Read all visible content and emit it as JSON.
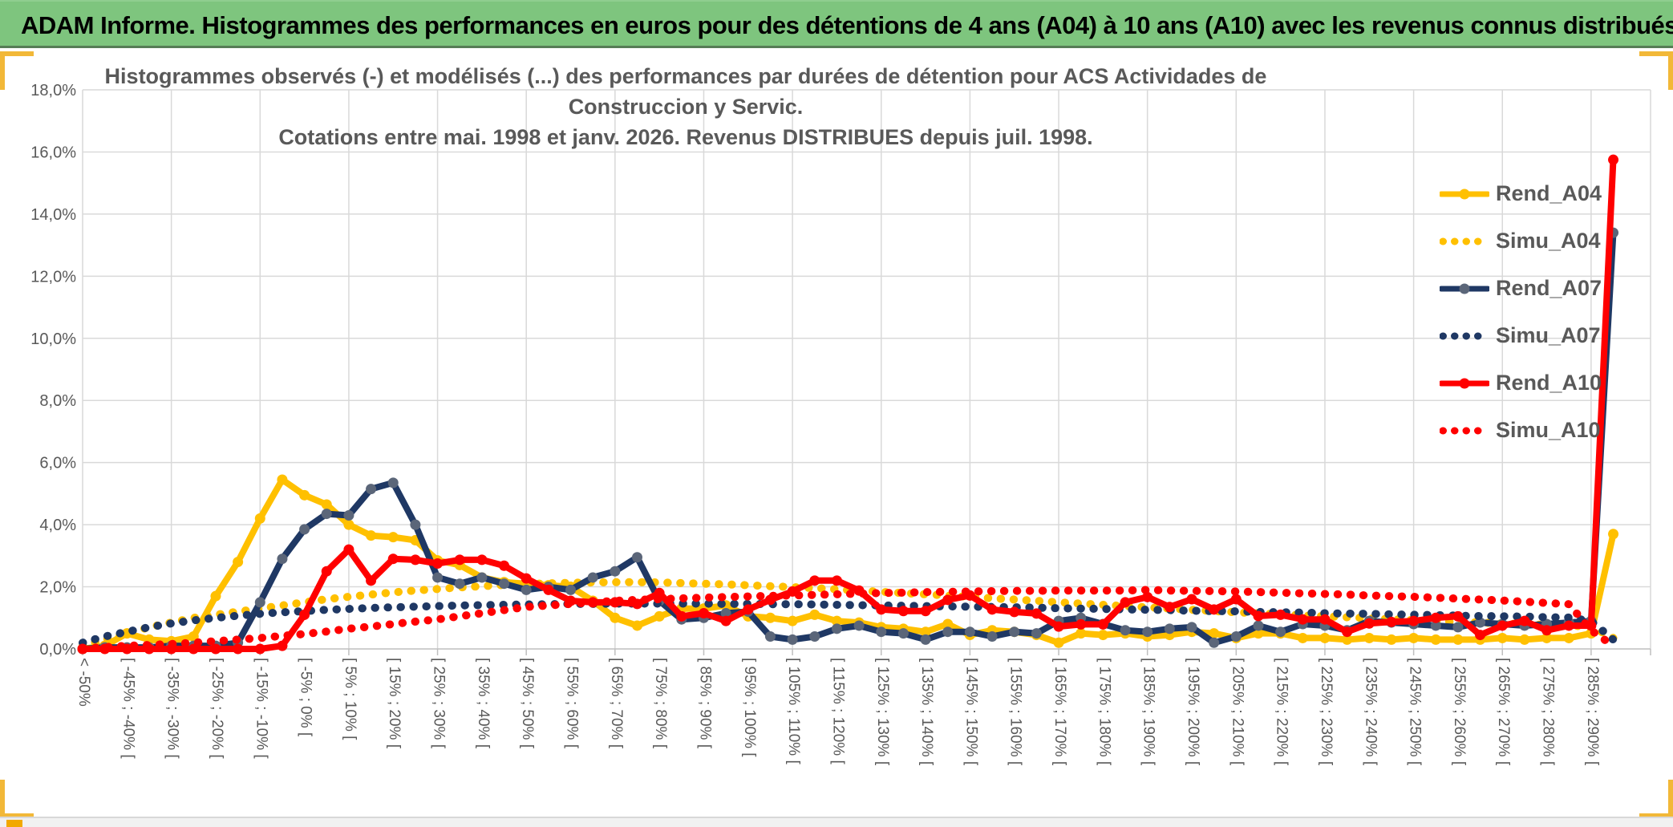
{
  "header": {
    "title": "ADAM Informe. Histogrammes des performances en euros pour des détentions de 4 ans (A04) à 10 ans (A10) avec les revenus connus distribués"
  },
  "chart_data": {
    "type": "line",
    "title_line1": "Histogrammes observés (-) et modélisés (...) des performances par durées de détention pour ACS Actividades de Construccion y Servic.",
    "title_line2": "Cotations entre mai. 1998 et janv. 2026. Revenus DISTRIBUES depuis juil. 1998.",
    "ylabel": "",
    "xlabel": "",
    "ylim": [
      0,
      18
    ],
    "y_tick_step_pct": 2,
    "grid": true,
    "legend_position": "right-inside",
    "bins_count": 70,
    "bin_width_pct": 5,
    "x_labels_every": 2,
    "gridline_every_bins": 4,
    "y_tick_labels": [
      "0,0%",
      "2,0%",
      "4,0%",
      "6,0%",
      "8,0%",
      "10,0%",
      "12,0%",
      "14,0%",
      "16,0%",
      "18,0%"
    ],
    "x_tick_labels": [
      "< -50%",
      "[ -45% ; -40% [",
      "[ -35% ; -30% [",
      "[ -25% ; -20% [",
      "[ -15% ; -10% [",
      "[ -5% ; 0% [",
      "[ 5% ; 10% [",
      "[ 15% ; 20% [",
      "[ 25% ; 30% [",
      "[ 35% ; 40% [",
      "[ 45% ; 50% [",
      "[ 55% ; 60% [",
      "[ 65% ; 70% [",
      "[ 75% ; 80% [",
      "[ 85% ; 90% [",
      "[ 95% ; 100% [",
      "[ 105% ; 110% [",
      "[ 115% ; 120% [",
      "[ 125% ; 130% [",
      "[ 135% ; 140% [",
      "[ 145% ; 150% [",
      "[ 155% ; 160% [",
      "[ 165% ; 170% [",
      "[ 175% ; 180% [",
      "[ 185% ; 190% [",
      "[ 195% ; 200% [",
      "[ 205% ; 210% [",
      "[ 215% ; 220% [",
      "[ 225% ; 230% [",
      "[ 235% ; 240% [",
      "[ 245% ; 250% [",
      "[ 255% ; 260% [",
      "[ 265% ; 270% [",
      "[ 275% ; 280% [",
      "[ 285% ; 290% ["
    ],
    "colors": {
      "gold": "#FFC000",
      "navy": "#1F3864",
      "navy_marker": "#5B6679",
      "red": "#FF0000",
      "grid": "#D9D9D9",
      "axis": "#BFBFBF",
      "text": "#595959"
    },
    "series": [
      {
        "name": "Rend_A04",
        "style": "solid",
        "color": "#FFC000",
        "values": [
          0.0,
          0.1,
          0.5,
          0.3,
          0.25,
          0.4,
          1.7,
          2.8,
          4.2,
          5.45,
          4.95,
          4.65,
          4.0,
          3.65,
          3.6,
          3.5,
          2.85,
          2.7,
          2.3,
          2.15,
          2.1,
          2.05,
          2.0,
          1.55,
          1.0,
          0.75,
          1.05,
          1.3,
          1.3,
          1.4,
          1.05,
          1.0,
          0.9,
          1.1,
          0.9,
          0.85,
          0.7,
          0.65,
          0.55,
          0.8,
          0.45,
          0.6,
          0.55,
          0.45,
          0.2,
          0.5,
          0.45,
          0.5,
          0.4,
          0.45,
          0.55,
          0.5,
          0.35,
          0.5,
          0.5,
          0.35,
          0.35,
          0.3,
          0.35,
          0.3,
          0.35,
          0.3,
          0.3,
          0.3,
          0.35,
          0.3,
          0.35,
          0.35,
          0.5,
          3.7
        ]
      },
      {
        "name": "Simu_A04",
        "style": "dotted",
        "color": "#FFC000",
        "values": [
          0.1,
          0.3,
          0.5,
          0.7,
          0.85,
          1.0,
          1.1,
          1.2,
          1.3,
          1.4,
          1.5,
          1.6,
          1.68,
          1.75,
          1.82,
          1.88,
          1.93,
          1.98,
          2.02,
          2.06,
          2.09,
          2.11,
          2.13,
          2.14,
          2.15,
          2.15,
          2.14,
          2.12,
          2.1,
          2.08,
          2.05,
          2.02,
          1.99,
          1.96,
          1.92,
          1.88,
          1.84,
          1.8,
          1.76,
          1.72,
          1.68,
          1.63,
          1.59,
          1.55,
          1.5,
          1.46,
          1.42,
          1.38,
          1.34,
          1.3,
          1.26,
          1.22,
          1.18,
          1.15,
          1.11,
          1.08,
          1.05,
          1.02,
          0.99,
          0.96,
          0.93,
          0.9,
          0.87,
          0.85,
          0.82,
          0.8,
          0.77,
          0.75,
          0.72,
          0.35
        ]
      },
      {
        "name": "Rend_A07",
        "style": "solid",
        "color": "#1F3864",
        "marker_color": "#5B6679",
        "values": [
          0.0,
          0.05,
          0.05,
          0.05,
          0.1,
          0.1,
          0.1,
          0.2,
          1.5,
          2.9,
          3.85,
          4.35,
          4.3,
          5.15,
          5.35,
          4.0,
          2.3,
          2.1,
          2.3,
          2.1,
          1.9,
          2.0,
          1.9,
          2.3,
          2.5,
          2.95,
          1.55,
          0.95,
          1.0,
          1.15,
          1.2,
          0.4,
          0.3,
          0.4,
          0.65,
          0.75,
          0.55,
          0.5,
          0.3,
          0.55,
          0.55,
          0.4,
          0.55,
          0.5,
          0.9,
          1.0,
          0.8,
          0.6,
          0.55,
          0.65,
          0.7,
          0.2,
          0.4,
          0.75,
          0.55,
          0.8,
          0.75,
          0.6,
          0.9,
          0.85,
          0.8,
          0.75,
          0.7,
          0.85,
          0.8,
          0.75,
          0.8,
          0.85,
          0.9,
          13.4
        ]
      },
      {
        "name": "Simu_A07",
        "style": "dotted",
        "color": "#1F3864",
        "values": [
          0.2,
          0.4,
          0.55,
          0.7,
          0.82,
          0.92,
          1.0,
          1.07,
          1.13,
          1.18,
          1.22,
          1.26,
          1.29,
          1.32,
          1.34,
          1.36,
          1.38,
          1.4,
          1.41,
          1.42,
          1.43,
          1.44,
          1.45,
          1.45,
          1.46,
          1.46,
          1.46,
          1.46,
          1.46,
          1.45,
          1.45,
          1.44,
          1.44,
          1.43,
          1.42,
          1.41,
          1.4,
          1.39,
          1.38,
          1.37,
          1.36,
          1.35,
          1.34,
          1.33,
          1.31,
          1.3,
          1.29,
          1.27,
          1.26,
          1.25,
          1.23,
          1.22,
          1.21,
          1.19,
          1.18,
          1.17,
          1.15,
          1.14,
          1.13,
          1.11,
          1.1,
          1.09,
          1.07,
          1.06,
          1.05,
          1.04,
          1.02,
          1.01,
          0.9,
          0.3
        ]
      },
      {
        "name": "Rend_A10",
        "style": "solid",
        "color": "#FF0000",
        "values": [
          0.0,
          0.0,
          0.0,
          0.0,
          0.0,
          0.0,
          0.0,
          0.0,
          0.0,
          0.1,
          1.1,
          2.5,
          3.2,
          2.2,
          2.9,
          2.87,
          2.75,
          2.87,
          2.87,
          2.68,
          2.27,
          1.9,
          1.55,
          1.5,
          1.5,
          1.45,
          1.8,
          1.05,
          1.15,
          0.9,
          1.27,
          1.58,
          1.85,
          2.2,
          2.2,
          1.88,
          1.27,
          1.22,
          1.22,
          1.58,
          1.72,
          1.27,
          1.19,
          1.14,
          0.72,
          0.79,
          0.79,
          1.5,
          1.67,
          1.35,
          1.6,
          1.27,
          1.6,
          1.06,
          1.1,
          0.95,
          0.95,
          0.55,
          0.82,
          0.87,
          0.9,
          1.0,
          1.05,
          0.45,
          0.75,
          0.9,
          0.6,
          0.75,
          0.75,
          15.75
        ]
      },
      {
        "name": "Simu_A10",
        "style": "dotted",
        "color": "#FF0000",
        "values": [
          0.02,
          0.06,
          0.1,
          0.13,
          0.16,
          0.2,
          0.25,
          0.3,
          0.35,
          0.42,
          0.48,
          0.56,
          0.65,
          0.72,
          0.8,
          0.88,
          0.95,
          1.05,
          1.15,
          1.25,
          1.35,
          1.4,
          1.45,
          1.5,
          1.55,
          1.58,
          1.6,
          1.63,
          1.65,
          1.67,
          1.69,
          1.71,
          1.72,
          1.74,
          1.76,
          1.78,
          1.8,
          1.81,
          1.83,
          1.84,
          1.85,
          1.86,
          1.87,
          1.87,
          1.88,
          1.88,
          1.88,
          1.88,
          1.9,
          1.88,
          1.87,
          1.86,
          1.85,
          1.83,
          1.81,
          1.79,
          1.77,
          1.75,
          1.72,
          1.7,
          1.68,
          1.65,
          1.62,
          1.59,
          1.56,
          1.52,
          1.48,
          1.44,
          0.6,
          0.1
        ]
      }
    ]
  }
}
